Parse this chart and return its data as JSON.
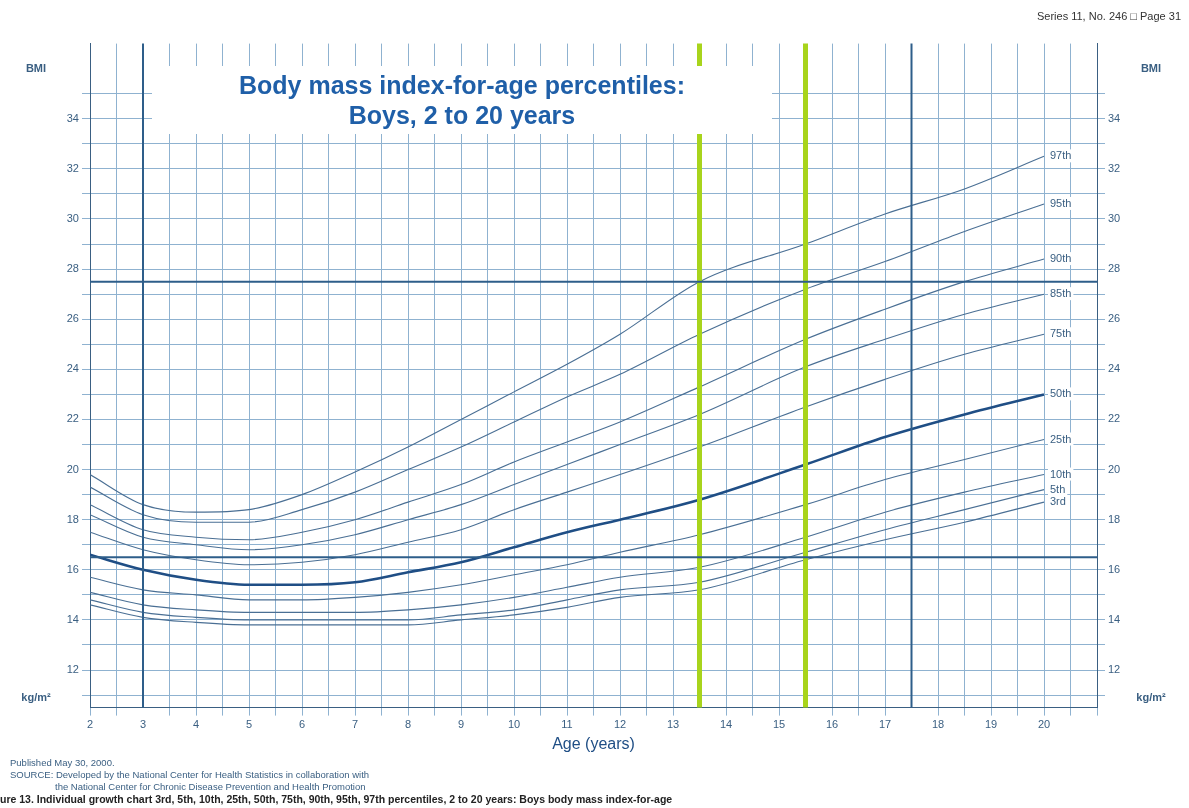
{
  "chart_data": {
    "type": "line",
    "title": "Body mass index-for-age percentiles:",
    "subtitle": "Boys, 2 to 20 years",
    "xlabel": "Age (years)",
    "ylabel": "BMI",
    "y2label": "BMI",
    "annotations": [
      "Series 11, No. 246 □ Page 31",
      "kg/m²",
      "kg/m²",
      "Published May 30, 2000.",
      "SOURCE: Developed by the National Center for Health Statistics in collaboration with",
      "the National Center for Chronic Disease Prevention and Health Promotion",
      "ure 13. Individual growth chart 3rd, 5th, 10th, 25th, 50th, 75th, 90th, 95th, 97th percentiles, 2 to 20 years: Boys body mass index-for-age"
    ],
    "x": [
      2,
      3,
      4,
      5,
      6,
      7,
      8,
      9,
      10,
      11,
      12,
      13.5,
      15.5,
      17,
      18.5,
      20
    ],
    "series": [
      {
        "name": "97th",
        "color": "#4a6f94",
        "values": [
          19.8,
          18.6,
          18.3,
          18.4,
          19.0,
          19.9,
          20.9,
          22.0,
          23.1,
          24.2,
          25.4,
          27.5,
          29.0,
          30.2,
          31.2,
          32.5
        ]
      },
      {
        "name": "95th",
        "color": "#4a6f94",
        "values": [
          19.3,
          18.2,
          17.9,
          17.9,
          18.4,
          19.1,
          20.0,
          20.9,
          21.9,
          22.9,
          23.8,
          25.4,
          27.2,
          28.3,
          29.5,
          30.6
        ]
      },
      {
        "name": "90th",
        "color": "#4a6f94",
        "values": [
          18.6,
          17.6,
          17.3,
          17.2,
          17.5,
          18.0,
          18.7,
          19.4,
          20.3,
          21.1,
          21.9,
          23.3,
          25.2,
          26.4,
          27.5,
          28.4
        ]
      },
      {
        "name": "85th",
        "color": "#4a6f94",
        "values": [
          18.2,
          17.3,
          17.0,
          16.8,
          17.0,
          17.4,
          18.0,
          18.6,
          19.4,
          20.2,
          21.0,
          22.2,
          24.1,
          25.2,
          26.2,
          27.0
        ]
      },
      {
        "name": "75th",
        "color": "#4a6f94",
        "values": [
          17.5,
          16.8,
          16.4,
          16.2,
          16.3,
          16.6,
          17.1,
          17.6,
          18.4,
          19.1,
          19.8,
          20.9,
          22.5,
          23.6,
          24.6,
          25.4
        ]
      },
      {
        "name": "50th",
        "color": "#1f4e85",
        "values": [
          16.6,
          16.0,
          15.6,
          15.4,
          15.4,
          15.5,
          15.9,
          16.3,
          16.9,
          17.5,
          18.0,
          18.8,
          20.2,
          21.3,
          22.2,
          23.0
        ]
      },
      {
        "name": "25th",
        "color": "#4a6f94",
        "values": [
          15.7,
          15.2,
          15.0,
          14.8,
          14.8,
          14.9,
          15.1,
          15.4,
          15.8,
          16.2,
          16.7,
          17.4,
          18.6,
          19.6,
          20.4,
          21.2
        ]
      },
      {
        "name": "10th",
        "color": "#4a6f94",
        "values": [
          15.1,
          14.6,
          14.4,
          14.3,
          14.3,
          14.3,
          14.4,
          14.6,
          14.9,
          15.3,
          15.7,
          16.1,
          17.3,
          18.3,
          19.1,
          19.8
        ]
      },
      {
        "name": "5th",
        "color": "#4a6f94",
        "values": [
          14.8,
          14.3,
          14.1,
          14.0,
          14.0,
          14.0,
          14.0,
          14.2,
          14.4,
          14.8,
          15.2,
          15.5,
          16.7,
          17.6,
          18.4,
          19.2
        ]
      },
      {
        "name": "3rd",
        "color": "#4a6f94",
        "values": [
          14.6,
          14.1,
          13.9,
          13.8,
          13.8,
          13.8,
          13.8,
          14.0,
          14.2,
          14.5,
          14.9,
          15.2,
          16.4,
          17.2,
          17.9,
          18.7
        ]
      }
    ],
    "ref_lines": [
      {
        "axis": "x",
        "value": 13.5,
        "color": "#a8d41c"
      },
      {
        "axis": "x",
        "value": 15.5,
        "color": "#a8d41c"
      },
      {
        "axis": "x",
        "value": 3,
        "color": "#2e5e8a"
      },
      {
        "axis": "x",
        "value": 17.5,
        "color": "#2e5e8a"
      },
      {
        "axis": "y",
        "value": 27.5,
        "color": "#2e5e8a"
      },
      {
        "axis": "y",
        "value": 16.5,
        "color": "#2e5e8a"
      }
    ],
    "xlim": [
      2,
      21
    ],
    "xticks": [
      2,
      {
        "value": 2.5,
        "label": null
      },
      3,
      {
        "value": 3.5,
        "label": null
      },
      4,
      {
        "value": 4.5,
        "label": null
      },
      5,
      {
        "value": 5.5,
        "label": null
      },
      6,
      {
        "value": 6.5,
        "label": null
      },
      7,
      {
        "value": 7.5,
        "label": null
      },
      8,
      {
        "value": 8.5,
        "label": null
      },
      9,
      {
        "value": 9.5,
        "label": null
      },
      10,
      {
        "value": 10.5,
        "label": null
      },
      11,
      {
        "value": 11.5,
        "label": null
      },
      12,
      {
        "value": 12.5,
        "label": null
      },
      13,
      14,
      {
        "value": 14.5,
        "label": null
      },
      15,
      16,
      {
        "value": 16.5,
        "label": null
      },
      17,
      18,
      {
        "value": 18.5,
        "label": null
      },
      19,
      {
        "value": 19.5,
        "label": null
      },
      20,
      {
        "value": 20.5,
        "label": null
      },
      {
        "value": 21,
        "label": null
      }
    ],
    "ylim": [
      10.5,
      37
    ],
    "yticks": [
      {
        "value": 11,
        "label": null
      },
      12,
      {
        "value": 13,
        "label": null
      },
      14,
      {
        "value": 15,
        "label": null
      },
      16,
      {
        "value": 17,
        "label": null
      },
      18,
      {
        "value": 19,
        "label": null
      },
      20,
      {
        "value": 21,
        "label": null
      },
      22,
      {
        "value": 23,
        "label": null
      },
      24,
      {
        "value": 25,
        "label": null
      },
      26,
      {
        "value": 27,
        "label": null
      },
      28,
      {
        "value": 29,
        "label": null
      },
      30,
      {
        "value": 31,
        "label": null
      },
      32,
      {
        "value": 33,
        "label": null
      },
      34,
      {
        "value": 35,
        "label": null
      }
    ],
    "y2lim": [
      10.5,
      37
    ],
    "y2ticks": [
      {
        "value": 11,
        "label": null
      },
      12,
      {
        "value": 13,
        "label": null
      },
      14,
      {
        "value": 15,
        "label": null
      },
      16,
      {
        "value": 17,
        "label": null
      },
      18,
      {
        "value": 19,
        "label": null
      },
      20,
      {
        "value": 21,
        "label": null
      },
      22,
      {
        "value": 23,
        "label": null
      },
      24,
      {
        "value": 25,
        "label": null
      },
      26,
      {
        "value": 27,
        "label": null
      },
      28,
      {
        "value": 29,
        "label": null
      },
      30,
      {
        "value": 31,
        "label": null
      },
      32,
      {
        "value": 33,
        "label": null
      },
      34,
      {
        "value": 35,
        "label": null
      }
    ],
    "grid": true,
    "legend": false,
    "marker": "none",
    "line_style": "solid"
  }
}
